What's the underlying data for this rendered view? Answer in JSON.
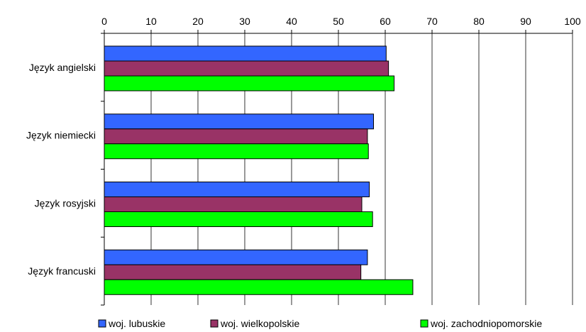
{
  "chart_data": {
    "type": "bar",
    "orientation": "horizontal",
    "title": "",
    "xlabel": "",
    "ylabel": "",
    "xlim": [
      0,
      100
    ],
    "x_ticks": [
      0,
      10,
      20,
      30,
      40,
      50,
      60,
      70,
      80,
      90,
      100
    ],
    "x_axis_position": "top",
    "grid": true,
    "legend_position": "bottom",
    "categories": [
      "Język angielski",
      "Język niemiecki",
      "Język rosyjski",
      "Język francuski"
    ],
    "series": [
      {
        "name": "woj. lubuskie",
        "color": "#3366FF",
        "values": [
          60.2,
          57.5,
          56.6,
          56.2
        ]
      },
      {
        "name": "woj. wielkopolskie",
        "color": "#993366",
        "values": [
          60.7,
          56.2,
          55.0,
          54.8
        ]
      },
      {
        "name": "woj. zachodniopomorskie",
        "color": "#00FF00",
        "values": [
          61.9,
          56.4,
          57.3,
          65.9
        ]
      }
    ]
  }
}
